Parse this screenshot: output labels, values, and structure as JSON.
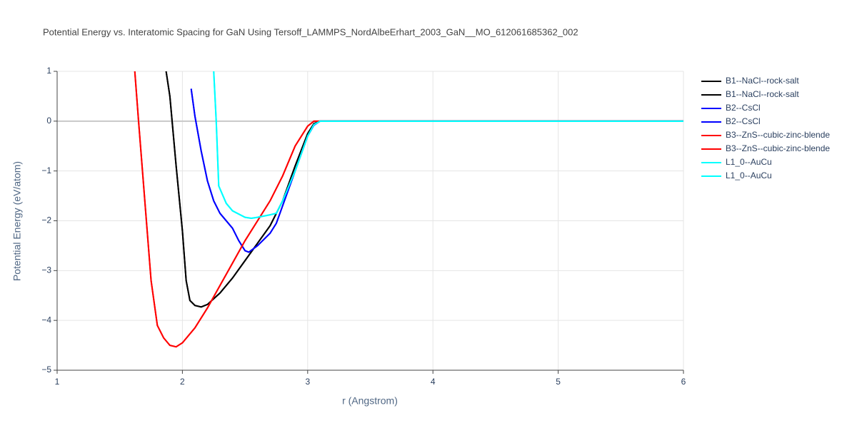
{
  "chart_data": {
    "type": "line",
    "title": "Potential Energy vs. Interatomic Spacing for GaN Using Tersoff_LAMMPS_NordAlbeErhart_2003_GaN__MO_612061685362_002",
    "x_label": "r (Angstrom)",
    "y_label": "Potential Energy (eV/atom)",
    "xlim": [
      1,
      6
    ],
    "ylim": [
      -5,
      1
    ],
    "xticks": [
      1,
      2,
      3,
      4,
      5,
      6
    ],
    "yticks": [
      {
        "value": -5,
        "label": "−5"
      },
      {
        "value": -4,
        "label": "−4"
      },
      {
        "value": -3,
        "label": "−3"
      },
      {
        "value": -2,
        "label": "−2"
      },
      {
        "value": -1,
        "label": "−1"
      },
      0,
      1
    ],
    "grid": true,
    "legend": "outside-right",
    "series": [
      {
        "name": "B1--NaCl--rock-salt",
        "color": "#000000",
        "x": [
          1.87,
          1.9,
          1.95,
          2.0,
          2.03,
          2.06,
          2.1,
          2.15,
          2.2,
          2.3,
          2.4,
          2.5,
          2.6,
          2.7,
          2.8,
          2.9,
          3.0,
          3.05,
          3.1,
          6
        ],
        "values": [
          1.0,
          0.5,
          -0.9,
          -2.2,
          -3.2,
          -3.6,
          -3.7,
          -3.73,
          -3.68,
          -3.45,
          -3.15,
          -2.8,
          -2.45,
          -2.1,
          -1.6,
          -0.9,
          -0.25,
          -0.05,
          0,
          0
        ]
      },
      {
        "name": "B1--NaCl--rock-salt",
        "color": "#000000",
        "x": [
          1.87,
          1.9,
          1.95,
          2.0,
          2.03,
          2.06,
          2.1,
          2.15,
          2.2,
          2.3,
          2.4,
          2.5,
          2.6,
          2.7,
          2.8,
          2.9,
          3.0,
          3.05,
          3.1,
          6
        ],
        "values": [
          1.0,
          0.5,
          -0.9,
          -2.2,
          -3.2,
          -3.6,
          -3.7,
          -3.73,
          -3.68,
          -3.45,
          -3.15,
          -2.8,
          -2.45,
          -2.1,
          -1.6,
          -0.9,
          -0.25,
          -0.05,
          0,
          0
        ]
      },
      {
        "name": "B2--CsCl",
        "color": "#0000ff",
        "x": [
          2.07,
          2.1,
          2.15,
          2.2,
          2.25,
          2.3,
          2.4,
          2.45,
          2.5,
          2.53,
          2.6,
          2.7,
          2.75,
          2.8,
          2.9,
          3.0,
          3.05,
          3.1,
          6
        ],
        "values": [
          0.65,
          0.1,
          -0.6,
          -1.2,
          -1.6,
          -1.85,
          -2.15,
          -2.4,
          -2.6,
          -2.63,
          -2.5,
          -2.25,
          -2.05,
          -1.7,
          -1.0,
          -0.3,
          -0.08,
          0,
          0
        ]
      },
      {
        "name": "B2--CsCl",
        "color": "#0000ff",
        "x": [
          2.07,
          2.1,
          2.15,
          2.2,
          2.25,
          2.3,
          2.4,
          2.45,
          2.5,
          2.53,
          2.6,
          2.7,
          2.75,
          2.8,
          2.9,
          3.0,
          3.05,
          3.1,
          6
        ],
        "values": [
          0.65,
          0.1,
          -0.6,
          -1.2,
          -1.6,
          -1.85,
          -2.15,
          -2.4,
          -2.6,
          -2.63,
          -2.5,
          -2.25,
          -2.05,
          -1.7,
          -1.0,
          -0.3,
          -0.08,
          0,
          0
        ]
      },
      {
        "name": "B3--ZnS--cubic-zinc-blende",
        "color": "#ff0000",
        "x": [
          1.62,
          1.65,
          1.7,
          1.75,
          1.8,
          1.85,
          1.9,
          1.95,
          2.0,
          2.1,
          2.2,
          2.3,
          2.4,
          2.5,
          2.6,
          2.7,
          2.8,
          2.9,
          3.0,
          3.05,
          6
        ],
        "values": [
          1.0,
          0,
          -1.6,
          -3.2,
          -4.1,
          -4.35,
          -4.5,
          -4.53,
          -4.45,
          -4.15,
          -3.75,
          -3.3,
          -2.85,
          -2.4,
          -2.0,
          -1.6,
          -1.1,
          -0.5,
          -0.1,
          0,
          0
        ]
      },
      {
        "name": "B3--ZnS--cubic-zinc-blende",
        "color": "#ff0000",
        "x": [
          1.62,
          1.65,
          1.7,
          1.75,
          1.8,
          1.85,
          1.9,
          1.95,
          2.0,
          2.1,
          2.2,
          2.3,
          2.4,
          2.5,
          2.6,
          2.7,
          2.8,
          2.9,
          3.0,
          3.05,
          6
        ],
        "values": [
          1.0,
          0,
          -1.6,
          -3.2,
          -4.1,
          -4.35,
          -4.5,
          -4.53,
          -4.45,
          -4.15,
          -3.75,
          -3.3,
          -2.85,
          -2.4,
          -2.0,
          -1.6,
          -1.1,
          -0.5,
          -0.1,
          0,
          0
        ]
      },
      {
        "name": "L1_0--AuCu",
        "color": "#00ffff",
        "x": [
          2.25,
          2.27,
          2.29,
          2.35,
          2.4,
          2.5,
          2.55,
          2.6,
          2.7,
          2.75,
          2.8,
          2.9,
          3.0,
          3.05,
          3.1,
          6
        ],
        "values": [
          1.0,
          0,
          -1.3,
          -1.65,
          -1.8,
          -1.93,
          -1.95,
          -1.93,
          -1.88,
          -1.85,
          -1.6,
          -1.0,
          -0.3,
          -0.07,
          0,
          0
        ]
      },
      {
        "name": "L1_0--AuCu",
        "color": "#00ffff",
        "x": [
          2.25,
          2.27,
          2.29,
          2.35,
          2.4,
          2.5,
          2.55,
          2.6,
          2.7,
          2.75,
          2.8,
          2.9,
          3.0,
          3.05,
          3.1,
          6
        ],
        "values": [
          1.0,
          0,
          -1.3,
          -1.65,
          -1.8,
          -1.93,
          -1.95,
          -1.93,
          -1.88,
          -1.85,
          -1.6,
          -1.0,
          -0.3,
          -0.07,
          0,
          0
        ]
      }
    ]
  }
}
